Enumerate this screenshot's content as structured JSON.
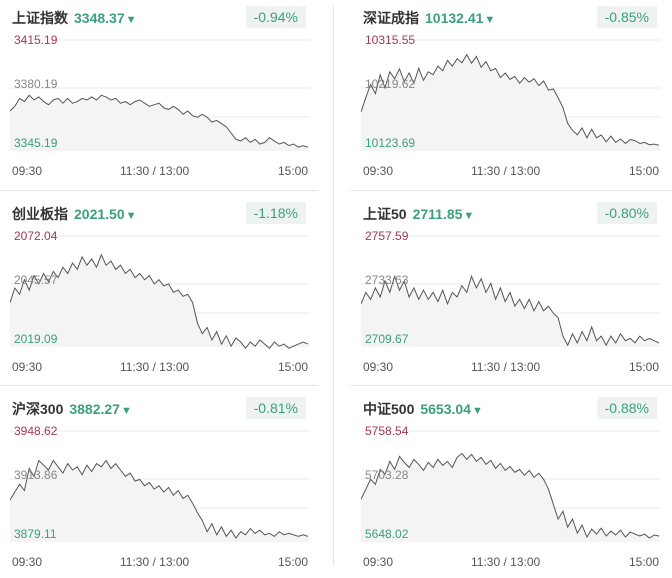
{
  "time_labels": [
    "09:30",
    "11:30 / 13:00",
    "15:00"
  ],
  "colors": {
    "up": "#a33a52",
    "down": "#3aa07c",
    "line": "#555555",
    "fill": "#f4f4f4",
    "grid": "#e8e8e8"
  },
  "indices": [
    {
      "name": "上证指数",
      "price": "3348.37",
      "arrow": "▼",
      "change_pct": "-0.94%",
      "high": "3415.19",
      "ref": "3380.19",
      "low": "3345.19",
      "series": [
        3370,
        3373,
        3378,
        3376,
        3380,
        3377,
        3379,
        3376,
        3374,
        3377,
        3378,
        3375,
        3378,
        3375,
        3376,
        3378,
        3377,
        3379,
        3377,
        3380,
        3379,
        3377,
        3378,
        3375,
        3376,
        3374,
        3376,
        3377,
        3375,
        3373,
        3374,
        3375,
        3372,
        3371,
        3373,
        3371,
        3368,
        3370,
        3367,
        3366,
        3368,
        3366,
        3363,
        3364,
        3362,
        3360,
        3356,
        3352,
        3351,
        3353,
        3350,
        3352,
        3349,
        3350,
        3353,
        3351,
        3349,
        3350,
        3348,
        3349,
        3347,
        3348,
        3347
      ]
    },
    {
      "name": "深证成指",
      "price": "10132.41",
      "arrow": "▼",
      "change_pct": "-0.85%",
      "high": "10315.55",
      "ref": "10219.62",
      "low": "10123.69",
      "series": [
        10190,
        10215,
        10238,
        10222,
        10255,
        10232,
        10260,
        10248,
        10265,
        10243,
        10258,
        10240,
        10266,
        10245,
        10260,
        10255,
        10270,
        10262,
        10280,
        10270,
        10283,
        10276,
        10290,
        10275,
        10287,
        10268,
        10278,
        10262,
        10266,
        10250,
        10258,
        10247,
        10252,
        10240,
        10250,
        10242,
        10248,
        10236,
        10244,
        10228,
        10230,
        10215,
        10198,
        10170,
        10158,
        10150,
        10162,
        10145,
        10160,
        10145,
        10150,
        10138,
        10148,
        10137,
        10143,
        10135,
        10142,
        10140,
        10135,
        10137,
        10133,
        10134,
        10132
      ]
    },
    {
      "name": "创业板指",
      "price": "2021.50",
      "arrow": "▼",
      "change_pct": "-1.18%",
      "high": "2072.04",
      "ref": "2045.57",
      "low": "2019.09",
      "series": [
        2040,
        2047,
        2044,
        2051,
        2046,
        2053,
        2049,
        2054,
        2050,
        2055,
        2052,
        2057,
        2054,
        2059,
        2056,
        2062,
        2058,
        2061,
        2057,
        2063,
        2058,
        2060,
        2056,
        2058,
        2054,
        2056,
        2052,
        2054,
        2051,
        2053,
        2049,
        2051,
        2048,
        2049,
        2045,
        2046,
        2043,
        2044,
        2040,
        2030,
        2025,
        2028,
        2022,
        2026,
        2020,
        2024,
        2019,
        2023,
        2021,
        2018,
        2021,
        2019,
        2022,
        2020,
        2018,
        2021,
        2019,
        2020,
        2018,
        2019,
        2020,
        2021,
        2020
      ]
    },
    {
      "name": "上证50",
      "price": "2711.85",
      "arrow": "▼",
      "change_pct": "-0.80%",
      "high": "2757.59",
      "ref": "2733.63",
      "low": "2709.67",
      "series": [
        2728,
        2733,
        2730,
        2735,
        2731,
        2738,
        2733,
        2740,
        2734,
        2738,
        2731,
        2735,
        2730,
        2734,
        2730,
        2733,
        2729,
        2734,
        2728,
        2733,
        2731,
        2736,
        2733,
        2740,
        2735,
        2739,
        2733,
        2737,
        2730,
        2735,
        2729,
        2733,
        2727,
        2730,
        2726,
        2730,
        2725,
        2729,
        2725,
        2727,
        2724,
        2722,
        2714,
        2710,
        2715,
        2711,
        2716,
        2712,
        2718,
        2712,
        2714,
        2710,
        2714,
        2711,
        2715,
        2712,
        2713,
        2711,
        2714,
        2712,
        2713,
        2712,
        2711
      ]
    },
    {
      "name": "沪深300",
      "price": "3882.27",
      "arrow": "▼",
      "change_pct": "-0.81%",
      "high": "3948.62",
      "ref": "3913.86",
      "low": "3879.11",
      "series": [
        3905,
        3910,
        3915,
        3911,
        3925,
        3920,
        3930,
        3927,
        3924,
        3930,
        3926,
        3922,
        3928,
        3924,
        3926,
        3921,
        3927,
        3923,
        3928,
        3926,
        3930,
        3925,
        3928,
        3924,
        3920,
        3922,
        3917,
        3918,
        3914,
        3916,
        3912,
        3914,
        3910,
        3913,
        3908,
        3911,
        3906,
        3908,
        3903,
        3897,
        3892,
        3885,
        3890,
        3883,
        3888,
        3882,
        3886,
        3881,
        3885,
        3883,
        3887,
        3884,
        3886,
        3883,
        3884,
        3882,
        3885,
        3883,
        3884,
        3883,
        3882,
        3883,
        3882
      ]
    },
    {
      "name": "中证500",
      "price": "5653.04",
      "arrow": "▼",
      "change_pct": "-0.88%",
      "high": "5758.54",
      "ref": "5703.28",
      "low": "5648.02",
      "series": [
        5690,
        5700,
        5710,
        5705,
        5720,
        5715,
        5728,
        5720,
        5733,
        5727,
        5722,
        5730,
        5725,
        5719,
        5727,
        5722,
        5730,
        5724,
        5728,
        5722,
        5732,
        5736,
        5730,
        5735,
        5728,
        5732,
        5725,
        5729,
        5721,
        5726,
        5719,
        5723,
        5717,
        5720,
        5714,
        5719,
        5712,
        5716,
        5710,
        5700,
        5685,
        5670,
        5678,
        5662,
        5670,
        5656,
        5664,
        5652,
        5660,
        5655,
        5661,
        5653,
        5658,
        5654,
        5659,
        5652,
        5657,
        5655,
        5653,
        5655,
        5651,
        5654,
        5653
      ]
    }
  ]
}
